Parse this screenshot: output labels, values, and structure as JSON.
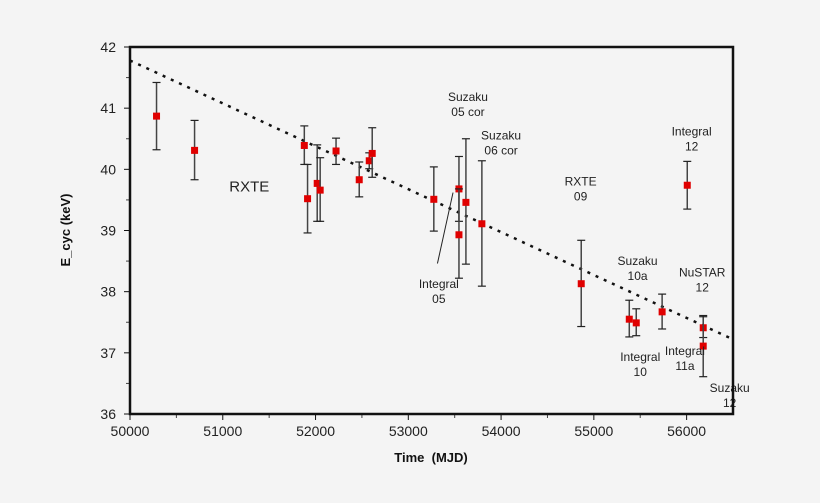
{
  "chart_data": {
    "type": "scatter",
    "title": "",
    "xlabel": "Time  (MJD)",
    "ylabel": "E_cyc (keV)",
    "xlim": [
      50000,
      56500
    ],
    "ylim": [
      36,
      42
    ],
    "xticks": [
      50000,
      51000,
      52000,
      53000,
      54000,
      55000,
      56000
    ],
    "yticks": [
      36,
      37,
      38,
      39,
      40,
      41,
      42
    ],
    "grid": false,
    "marker_color": "#e00000",
    "points": [
      {
        "x": 50286,
        "y": 40.87,
        "hi": 41.42,
        "lo": 40.32
      },
      {
        "x": 50696,
        "y": 40.31,
        "hi": 40.8,
        "lo": 39.83
      },
      {
        "x": 51879,
        "y": 40.39,
        "hi": 40.71,
        "lo": 40.08
      },
      {
        "x": 51914,
        "y": 39.52,
        "hi": 40.08,
        "lo": 38.96
      },
      {
        "x": 52018,
        "y": 39.77,
        "hi": 40.4,
        "lo": 39.15
      },
      {
        "x": 52050,
        "y": 39.66,
        "hi": 40.19,
        "lo": 39.15
      },
      {
        "x": 52221,
        "y": 40.3,
        "hi": 40.51,
        "lo": 40.08
      },
      {
        "x": 52471,
        "y": 39.83,
        "hi": 40.12,
        "lo": 39.55
      },
      {
        "x": 52579,
        "y": 40.14,
        "hi": 40.27,
        "lo": 40.01
      },
      {
        "x": 52611,
        "y": 40.26,
        "hi": 40.68,
        "lo": 39.87
      },
      {
        "x": 53275,
        "y": 39.51,
        "hi": 40.04,
        "lo": 38.99
      },
      {
        "x": 53546,
        "y": 39.68,
        "hi": 40.21,
        "lo": 39.15
      },
      {
        "x": 53546,
        "y": 38.93,
        "hi": 39.68,
        "lo": 38.22
      },
      {
        "x": 53621,
        "y": 39.46,
        "hi": 40.5,
        "lo": 38.45
      },
      {
        "x": 53793,
        "y": 39.11,
        "hi": 40.14,
        "lo": 38.09
      },
      {
        "x": 54864,
        "y": 38.13,
        "hi": 38.84,
        "lo": 37.43
      },
      {
        "x": 55382,
        "y": 37.55,
        "hi": 37.86,
        "lo": 37.26
      },
      {
        "x": 55457,
        "y": 37.49,
        "hi": 37.72,
        "lo": 37.28
      },
      {
        "x": 55736,
        "y": 37.67,
        "hi": 37.96,
        "lo": 37.39
      },
      {
        "x": 56007,
        "y": 39.74,
        "hi": 40.13,
        "lo": 39.35
      },
      {
        "x": 56179,
        "y": 37.41,
        "hi": 37.61,
        "lo": 37.25
      },
      {
        "x": 56179,
        "y": 37.11,
        "hi": 37.59,
        "lo": 36.61
      }
    ],
    "trend_line": {
      "style": "dotted",
      "x": [
        50000,
        56500
      ],
      "y": [
        41.78,
        37.22
      ]
    },
    "annotations": [
      {
        "lines": [
          "RXTE"
        ],
        "x": 51286,
        "y": 39.7,
        "large": true
      },
      {
        "lines": [
          "Suzaku",
          "05 cor"
        ],
        "x": 53643,
        "y": 41.06
      },
      {
        "lines": [
          "Suzaku",
          "06 cor"
        ],
        "x": 54000,
        "y": 40.43
      },
      {
        "lines": [
          "Integral",
          "05"
        ],
        "x": 53329,
        "y": 38.0
      },
      {
        "lines": [
          "RXTE",
          "09"
        ],
        "x": 54857,
        "y": 39.68
      },
      {
        "lines": [
          "Integral",
          "12"
        ],
        "x": 56054,
        "y": 40.5
      },
      {
        "lines": [
          "Suzaku",
          "10a"
        ],
        "x": 55471,
        "y": 38.38
      },
      {
        "lines": [
          "NuSTAR",
          "12"
        ],
        "x": 56168,
        "y": 38.19
      },
      {
        "lines": [
          "Integral",
          "10"
        ],
        "x": 55500,
        "y": 36.81
      },
      {
        "lines": [
          "Integral",
          "11a"
        ],
        "x": 55982,
        "y": 36.91
      },
      {
        "lines": [
          "Suzaku",
          "12"
        ],
        "x": 56464,
        "y": 36.3
      }
    ],
    "pointer_line": {
      "x": [
        53314,
        53482
      ],
      "y": [
        38.46,
        39.62
      ]
    }
  }
}
